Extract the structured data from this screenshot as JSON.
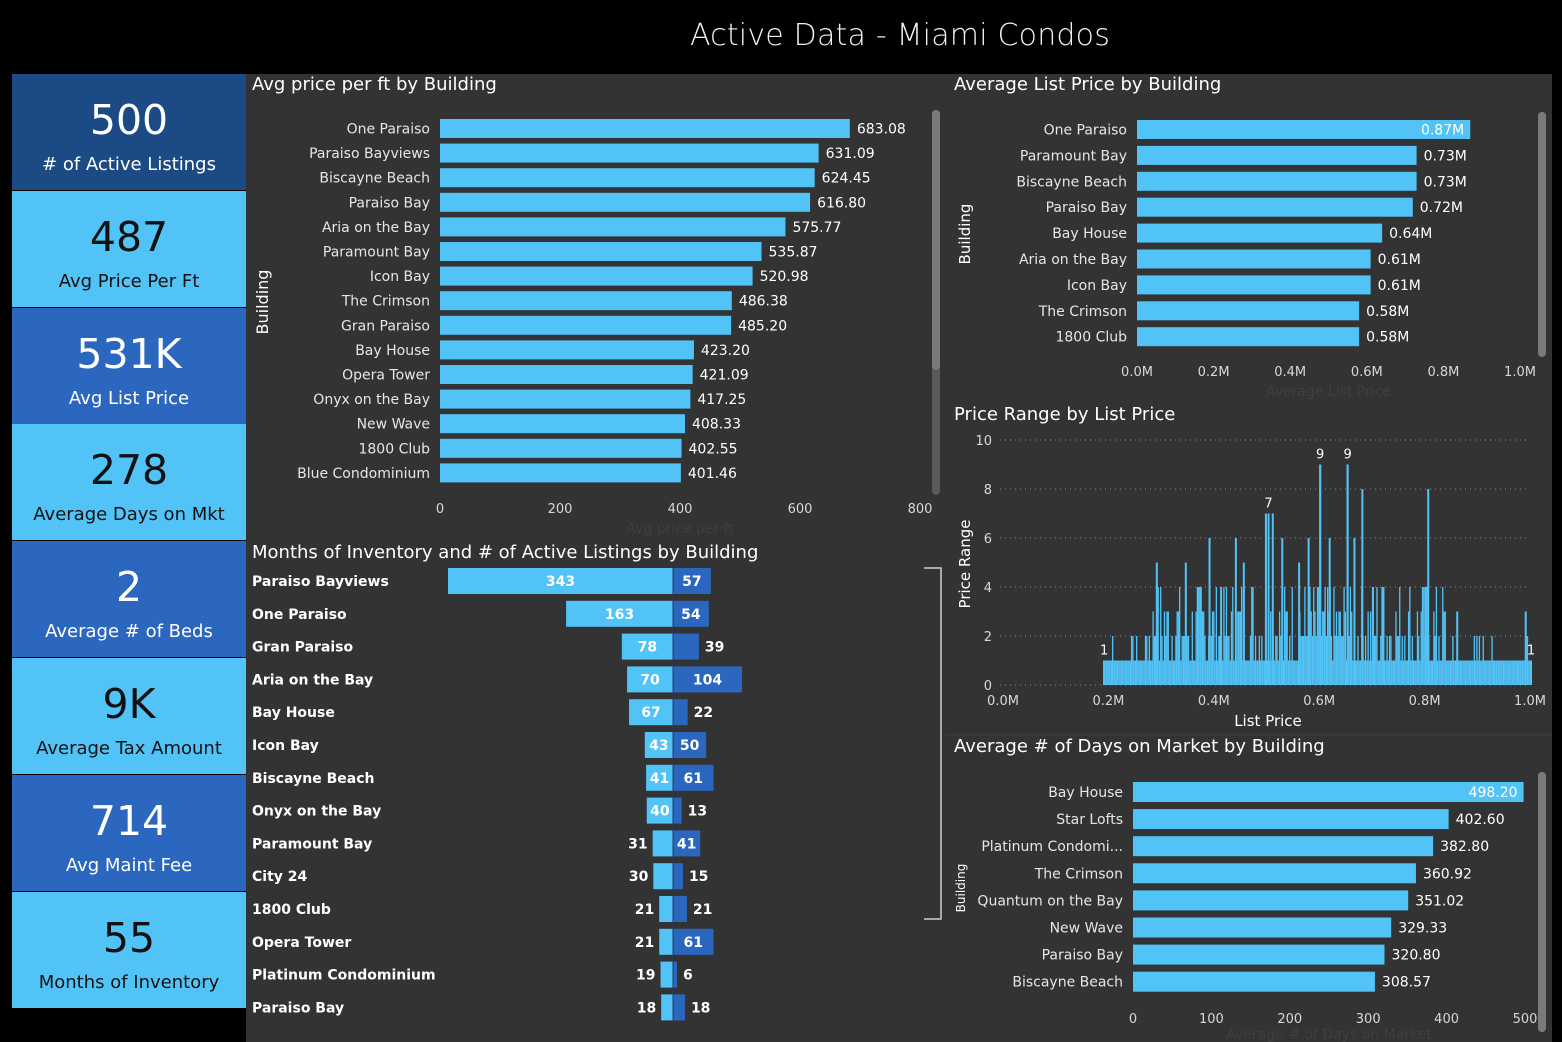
{
  "page_title": "Active Data - Miami Condos",
  "kpis": [
    {
      "value": "500",
      "label": "# of Active Listings",
      "bg": "#1c4a85",
      "fg": "#ffffff"
    },
    {
      "value": "487",
      "label": "Avg Price Per Ft",
      "bg": "#52c3f7",
      "fg": "#111111"
    },
    {
      "value": "531K",
      "label": "Avg List Price",
      "bg": "#2b67bf",
      "fg": "#ffffff"
    },
    {
      "value": "278",
      "label": "Average Days on Mkt",
      "bg": "#52c3f7",
      "fg": "#111111"
    },
    {
      "value": "2",
      "label": "Average # of Beds",
      "bg": "#2b67bf",
      "fg": "#ffffff"
    },
    {
      "value": "9K",
      "label": "Average Tax Amount",
      "bg": "#52c3f7",
      "fg": "#111111"
    },
    {
      "value": "714",
      "label": "Avg Maint Fee",
      "bg": "#2b67bf",
      "fg": "#ffffff"
    },
    {
      "value": "55",
      "label": "Months of Inventory",
      "bg": "#52c3f7",
      "fg": "#111111"
    }
  ],
  "colors": {
    "light_bar": "#52c3f7",
    "dark_bar": "#2b67bf",
    "panel": "#333333",
    "grid": "#8a8a8a"
  },
  "chart_data": [
    {
      "type": "bar",
      "orientation": "horizontal",
      "title": "Avg price per ft by Building",
      "ylabel": "Building",
      "xlabel": "Avg price per ft",
      "xlim": [
        0,
        800
      ],
      "xticks": [
        "0",
        "200",
        "400",
        "600",
        "800"
      ],
      "categories": [
        "One Paraiso",
        "Paraiso Bayviews",
        "Biscayne Beach",
        "Paraiso Bay",
        "Aria on the Bay",
        "Paramount Bay",
        "Icon Bay",
        "The Crimson",
        "Gran Paraiso",
        "Bay House",
        "Opera Tower",
        "Onyx on the Bay",
        "New Wave",
        "1800 Club",
        "Blue Condominium"
      ],
      "values": [
        683.08,
        631.09,
        624.45,
        616.8,
        575.77,
        535.87,
        520.98,
        486.38,
        485.2,
        423.2,
        421.09,
        417.25,
        408.33,
        402.55,
        401.46
      ],
      "value_labels": [
        "683.08",
        "631.09",
        "624.45",
        "616.80",
        "575.77",
        "535.87",
        "520.98",
        "486.38",
        "485.20",
        "423.20",
        "421.09",
        "417.25",
        "408.33",
        "402.55",
        "401.46"
      ]
    },
    {
      "type": "bar",
      "orientation": "horizontal",
      "title": "Average List Price by Building",
      "ylabel": "Building",
      "xlabel": "Average List Price",
      "xlim": [
        0,
        1000000
      ],
      "xticks": [
        "0.0M",
        "0.2M",
        "0.4M",
        "0.6M",
        "0.8M",
        "1.0M"
      ],
      "categories": [
        "One Paraiso",
        "Paramount Bay",
        "Biscayne Beach",
        "Paraiso Bay",
        "Bay House",
        "Aria on the Bay",
        "Icon Bay",
        "The Crimson",
        "1800 Club"
      ],
      "values": [
        870000,
        730000,
        730000,
        720000,
        640000,
        610000,
        610000,
        580000,
        580000
      ],
      "value_labels": [
        "0.87M",
        "0.73M",
        "0.73M",
        "0.72M",
        "0.64M",
        "0.61M",
        "0.61M",
        "0.58M",
        "0.58M"
      ]
    },
    {
      "type": "bar",
      "title": "Price Range by List Price",
      "ylabel": "Price Range",
      "xlabel": "List Price",
      "xlim": [
        0,
        1000000
      ],
      "ylim": [
        0,
        10
      ],
      "xticks": [
        "0.0M",
        "0.2M",
        "0.4M",
        "0.6M",
        "0.8M",
        "1.0M"
      ],
      "yticks": [
        "0",
        "2",
        "4",
        "6",
        "8",
        "10"
      ],
      "grid": true,
      "labeled_points": [
        {
          "x": 190000,
          "y": 1,
          "label": "1"
        },
        {
          "x": 502000,
          "y": 7,
          "label": "7"
        },
        {
          "x": 600000,
          "y": 9,
          "label": "9"
        },
        {
          "x": 652000,
          "y": 9,
          "label": "9"
        },
        {
          "x": 1000000,
          "y": 1,
          "label": "1"
        }
      ],
      "peaks": [
        {
          "x": 290000,
          "y": 5
        },
        {
          "x": 345000,
          "y": 5
        },
        {
          "x": 390000,
          "y": 6
        },
        {
          "x": 412000,
          "y": 4
        },
        {
          "x": 440000,
          "y": 6
        },
        {
          "x": 455000,
          "y": 5
        },
        {
          "x": 497000,
          "y": 7
        },
        {
          "x": 510000,
          "y": 7
        },
        {
          "x": 528000,
          "y": 6
        },
        {
          "x": 560000,
          "y": 5
        },
        {
          "x": 578000,
          "y": 6
        },
        {
          "x": 600000,
          "y": 9
        },
        {
          "x": 618000,
          "y": 6
        },
        {
          "x": 652000,
          "y": 9
        },
        {
          "x": 665000,
          "y": 6
        },
        {
          "x": 680000,
          "y": 8
        },
        {
          "x": 700000,
          "y": 4
        },
        {
          "x": 720000,
          "y": 4
        },
        {
          "x": 800000,
          "y": 4
        },
        {
          "x": 805000,
          "y": 8
        },
        {
          "x": 860000,
          "y": 3
        },
        {
          "x": 990000,
          "y": 3
        }
      ]
    },
    {
      "type": "bar",
      "orientation": "horizontal",
      "title": "Average # of Days on Market by Building",
      "ylabel": "Building",
      "xlabel": "Average # of Days on Market",
      "xlim": [
        0,
        500
      ],
      "xticks": [
        "0",
        "100",
        "200",
        "300",
        "400",
        "500"
      ],
      "categories": [
        "Bay House",
        "Star Lofts",
        "Platinum Condomi...",
        "The Crimson",
        "Quantum on the Bay",
        "New Wave",
        "Paraiso Bay",
        "Biscayne Beach"
      ],
      "values": [
        498.2,
        402.6,
        382.8,
        360.92,
        351.02,
        329.33,
        320.8,
        308.57
      ],
      "value_labels": [
        "498.20",
        "402.60",
        "382.80",
        "360.92",
        "351.02",
        "329.33",
        "320.80",
        "308.57"
      ]
    },
    {
      "type": "bar",
      "orientation": "horizontal",
      "title": "Months of Inventory and # of Active Listings by Building",
      "categories": [
        "Paraiso Bayviews",
        "One Paraiso",
        "Gran Paraiso",
        "Aria on the Bay",
        "Bay House",
        "Icon Bay",
        "Biscayne Beach",
        "Onyx on the Bay",
        "Paramount Bay",
        "City 24",
        "1800 Club",
        "Opera Tower",
        "Platinum Condominium",
        "Paraiso Bay"
      ],
      "series": [
        {
          "values": [
            343,
            163,
            78,
            70,
            67,
            43,
            41,
            40,
            31,
            30,
            21,
            21,
            19,
            18
          ]
        },
        {
          "values": [
            57,
            54,
            39,
            104,
            22,
            50,
            61,
            13,
            41,
            15,
            21,
            61,
            6,
            18
          ]
        }
      ]
    }
  ]
}
